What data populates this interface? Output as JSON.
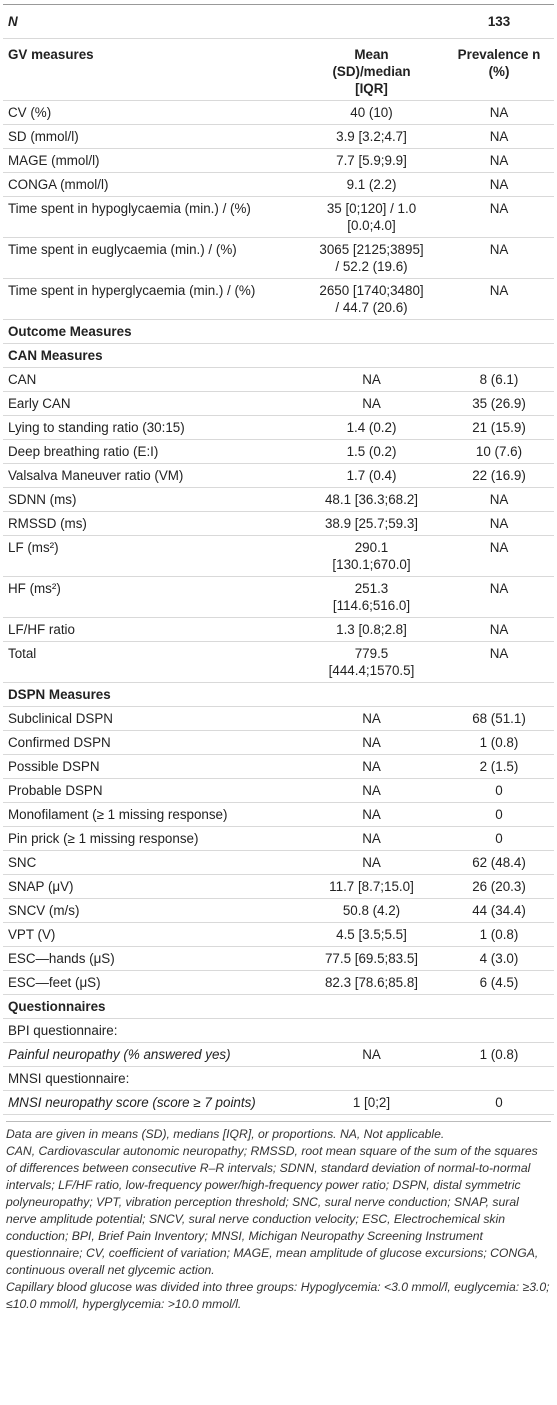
{
  "table": {
    "n_label": "N",
    "n_value": "133",
    "columns": [
      "GV measures",
      [
        "Mean",
        "(SD)/median",
        "[IQR]"
      ],
      "Prevalence n (%)"
    ],
    "rows": [
      {
        "cells": [
          "CV (%)",
          "40 (10)",
          "NA"
        ]
      },
      {
        "cells": [
          "SD (mmol/l)",
          "3.9 [3.2;4.7]",
          "NA"
        ]
      },
      {
        "cells": [
          "MAGE (mmol/l)",
          "7.7 [5.9;9.9]",
          "NA"
        ]
      },
      {
        "cells": [
          "CONGA (mmol/l)",
          "9.1 (2.2)",
          "NA"
        ]
      },
      {
        "cells": [
          "Time spent in hypoglycaemia (min.) / (%)",
          [
            "35 [0;120] / 1.0",
            "[0.0;4.0]"
          ],
          "NA"
        ]
      },
      {
        "cells": [
          "Time spent in euglycaemia (min.) / (%)",
          [
            "3065 [2125;3895]",
            "/ 52.2 (19.6)"
          ],
          "NA"
        ]
      },
      {
        "cells": [
          "Time spent in hyperglycaemia (min.) / (%)",
          [
            "2650 [1740;3480]",
            "/ 44.7 (20.6)"
          ],
          "NA"
        ]
      },
      {
        "cells": [
          "Outcome Measures"
        ],
        "style": "section"
      },
      {
        "cells": [
          "CAN Measures"
        ],
        "style": "section"
      },
      {
        "cells": [
          "CAN",
          "NA",
          "8 (6.1)"
        ]
      },
      {
        "cells": [
          "Early CAN",
          "NA",
          "35 (26.9)"
        ]
      },
      {
        "cells": [
          "Lying to standing ratio (30:15)",
          "1.4 (0.2)",
          "21 (15.9)"
        ]
      },
      {
        "cells": [
          "Deep breathing ratio (E:I)",
          "1.5 (0.2)",
          "10 (7.6)"
        ]
      },
      {
        "cells": [
          "Valsalva Maneuver ratio (VM)",
          "1.7 (0.4)",
          "22 (16.9)"
        ]
      },
      {
        "cells": [
          "SDNN (ms)",
          "48.1 [36.3;68.2]",
          "NA"
        ]
      },
      {
        "cells": [
          "RMSSD (ms)",
          "38.9 [25.7;59.3]",
          "NA"
        ]
      },
      {
        "cells": [
          "LF (ms²)",
          [
            "290.1",
            "[130.1;670.0]"
          ],
          "NA"
        ]
      },
      {
        "cells": [
          "HF (ms²)",
          [
            "251.3",
            "[114.6;516.0]"
          ],
          "NA"
        ]
      },
      {
        "cells": [
          "LF/HF ratio",
          "1.3 [0.8;2.8]",
          "NA"
        ]
      },
      {
        "cells": [
          "Total",
          [
            "779.5",
            "[444.4;1570.5]"
          ],
          "NA"
        ]
      },
      {
        "cells": [
          "DSPN Measures"
        ],
        "style": "section"
      },
      {
        "cells": [
          "Subclinical DSPN",
          "NA",
          "68 (51.1)"
        ]
      },
      {
        "cells": [
          "Confirmed DSPN",
          "NA",
          "1 (0.8)"
        ]
      },
      {
        "cells": [
          "Possible DSPN",
          "NA",
          "2 (1.5)"
        ]
      },
      {
        "cells": [
          "Probable DSPN",
          "NA",
          "0"
        ]
      },
      {
        "cells": [
          "Monofilament (≥ 1 missing response)",
          "NA",
          "0"
        ]
      },
      {
        "cells": [
          "Pin prick (≥ 1 missing response)",
          "NA",
          "0"
        ]
      },
      {
        "cells": [
          "SNC",
          "NA",
          "62 (48.4)"
        ]
      },
      {
        "cells": [
          "SNAP (μV)",
          "11.7 [8.7;15.0]",
          "26 (20.3)"
        ]
      },
      {
        "cells": [
          "SNCV (m/s)",
          "50.8 (4.2)",
          "44 (34.4)"
        ]
      },
      {
        "cells": [
          "VPT (V)",
          "4.5 [3.5;5.5]",
          "1 (0.8)"
        ]
      },
      {
        "cells": [
          "ESC—hands (μS)",
          "77.5 [69.5;83.5]",
          "4 (3.0)"
        ]
      },
      {
        "cells": [
          "ESC—feet (μS)",
          "82.3 [78.6;85.8]",
          "6 (4.5)"
        ]
      },
      {
        "cells": [
          "Questionnaires"
        ],
        "style": "section"
      },
      {
        "cells": [
          "BPI questionnaire:"
        ]
      },
      {
        "cells": [
          "Painful neuropathy (% answered yes)",
          "NA",
          "1 (0.8)"
        ],
        "style": "italic"
      },
      {
        "cells": [
          "MNSI questionnaire:"
        ]
      },
      {
        "cells": [
          "MNSI neuropathy score (score ≥ 7 points)",
          "1 [0;2]",
          "0"
        ],
        "style": "italic"
      }
    ],
    "footnotes": [
      "Data are given in means (SD), medians [IQR], or proportions. NA, Not applicable.",
      "CAN, Cardiovascular autonomic neuropathy; RMSSD, root mean square of the sum of the squares of differences between consecutive R–R intervals; SDNN, standard deviation of normal-to-normal intervals; LF/HF ratio, low-frequency power/high-frequency power ratio; DSPN, distal symmetric polyneuropathy; VPT, vibration perception threshold; SNC, sural nerve conduction; SNAP, sural nerve amplitude potential; SNCV, sural nerve conduction velocity; ESC, Electrochemical skin conduction; BPI, Brief Pain Inventory; MNSI, Michigan Neuropathy Screening Instrument questionnaire; CV, coefficient of variation; MAGE, mean amplitude of glucose excursions; CONGA, continuous overall net glycemic action.",
      "Capillary blood glucose was divided into three groups: Hypoglycemia: <3.0 mmol/l, euglycemia: ≥3.0; ≤10.0 mmol/l, hyperglycemia: >10.0 mmol/l."
    ]
  }
}
